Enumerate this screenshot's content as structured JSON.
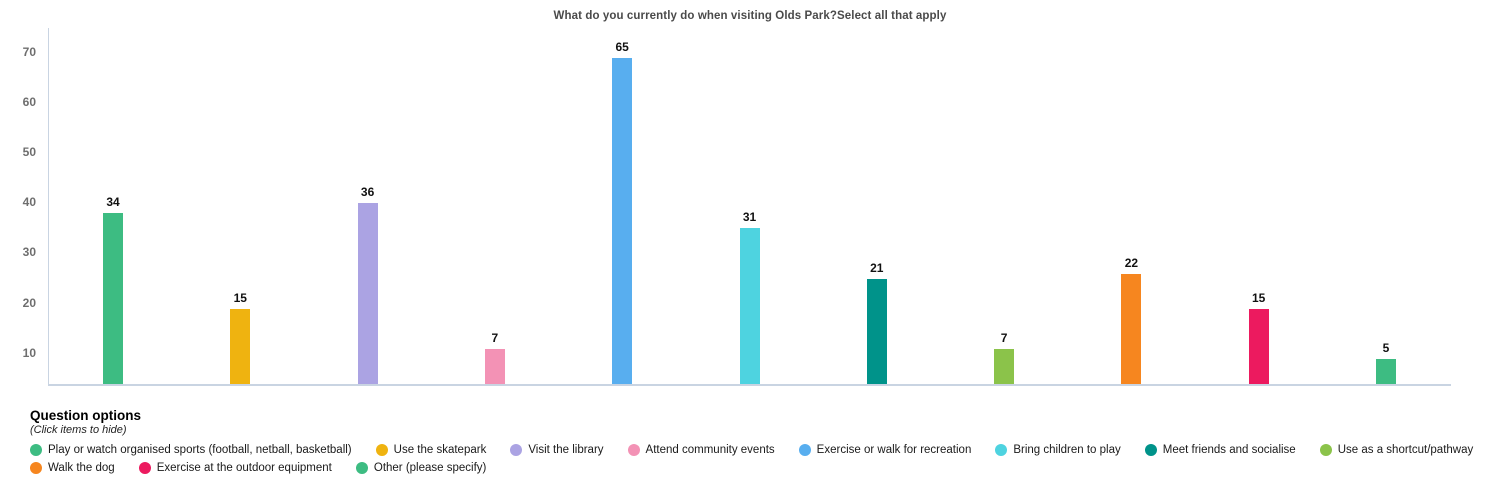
{
  "title": "What do you currently do when visiting Olds Park?Select all that apply",
  "chart_data": {
    "type": "bar",
    "title": "What do you currently do when visiting Olds Park?Select all that apply",
    "categories": [
      "Play or watch organised sports (football, netball, basketball)",
      "Use the skatepark",
      "Visit the library",
      "Attend community events",
      "Exercise or walk for recreation",
      "Bring children to play",
      "Meet friends and socialise",
      "Use as a shortcut/pathway",
      "Walk the dog",
      "Exercise at the outdoor equipment",
      "Other (please specify)"
    ],
    "values": [
      34,
      15,
      36,
      7,
      65,
      31,
      21,
      7,
      22,
      15,
      5
    ],
    "colors": [
      "#3dbc82",
      "#efb310",
      "#aba3e3",
      "#f392b5",
      "#58aeef",
      "#4ed3e0",
      "#00938a",
      "#8bc34a",
      "#f6861f",
      "#ec1a5f",
      "#3dbc82"
    ],
    "yticks": [
      10,
      20,
      30,
      40,
      50,
      60,
      70
    ],
    "ylim": [
      0,
      72
    ],
    "xlabel": "",
    "ylabel": "",
    "grid": false,
    "bar_value_labels": true,
    "legend_position": "bottom",
    "axis_line_color": "#c9d4e2"
  },
  "legend": {
    "title": "Question options",
    "subtitle": "(Click items to hide)",
    "rows": [
      [
        0,
        1,
        2,
        3,
        4,
        5,
        6,
        7
      ],
      [
        8,
        9,
        10
      ]
    ]
  }
}
